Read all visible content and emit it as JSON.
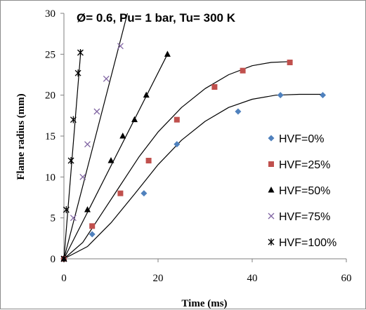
{
  "chart_data": {
    "type": "scatter",
    "title": "Ø= 0.6, Pu= 1 bar, Tu= 300 K",
    "xlabel": "Time (ms)",
    "ylabel": "Flame radius (mm)",
    "xlim": [
      0,
      60
    ],
    "ylim": [
      0,
      30
    ],
    "xticks": [
      "0",
      "20",
      "40",
      "60"
    ],
    "yticks": [
      "0",
      "5",
      "10",
      "15",
      "20",
      "25",
      "30"
    ],
    "grid": false,
    "legend_position": "right",
    "series": [
      {
        "name": "HVF=0%",
        "marker": "diamond",
        "color": "#4f81bd",
        "x": [
          0,
          6,
          17,
          24,
          37,
          46,
          55
        ],
        "y": [
          0,
          3,
          8,
          14,
          18,
          20,
          20
        ],
        "fit": [
          [
            0,
            0
          ],
          [
            5,
            1.5
          ],
          [
            10,
            4.4
          ],
          [
            15,
            7.9
          ],
          [
            20,
            11.5
          ],
          [
            25,
            14.5
          ],
          [
            30,
            16.8
          ],
          [
            35,
            18.5
          ],
          [
            40,
            19.5
          ],
          [
            45,
            20.0
          ],
          [
            50,
            20.1
          ],
          [
            55,
            20.1
          ]
        ]
      },
      {
        "name": "HVF=25%",
        "marker": "square",
        "color": "#c0504d",
        "x": [
          0,
          6,
          12,
          18,
          24,
          32,
          38,
          48
        ],
        "y": [
          0,
          4,
          8,
          12,
          17,
          21,
          23,
          24
        ],
        "fit": [
          [
            0,
            0
          ],
          [
            4,
            2.0
          ],
          [
            8,
            5.5
          ],
          [
            12,
            9.0
          ],
          [
            16,
            12.5
          ],
          [
            20,
            15.5
          ],
          [
            25,
            18.5
          ],
          [
            30,
            20.8
          ],
          [
            35,
            22.5
          ],
          [
            40,
            23.6
          ],
          [
            44,
            24.0
          ],
          [
            48,
            24.1
          ]
        ]
      },
      {
        "name": "HVF=50%",
        "marker": "triangle",
        "color": "#000000",
        "x": [
          0,
          5,
          10,
          12.5,
          15,
          17.5,
          22
        ],
        "y": [
          0,
          6,
          12,
          15,
          17,
          20,
          25
        ],
        "fit": [
          [
            0,
            0
          ],
          [
            22,
            25
          ]
        ]
      },
      {
        "name": "HVF=75%",
        "marker": "x",
        "color": "#8064a2",
        "x": [
          0,
          2,
          4,
          5,
          7,
          9,
          12
        ],
        "y": [
          0,
          5,
          10,
          14,
          18,
          22,
          26
        ],
        "fit": [
          [
            0,
            0
          ],
          [
            13.5,
            30
          ]
        ]
      },
      {
        "name": "HVF=100%",
        "marker": "star",
        "color": "#000000",
        "x": [
          0,
          0.5,
          1.5,
          2,
          3,
          3.5
        ],
        "y": [
          0,
          6,
          12,
          17,
          22.7,
          25.2
        ],
        "fit": [
          [
            0,
            0
          ],
          [
            3.6,
            25.5
          ]
        ]
      }
    ]
  }
}
